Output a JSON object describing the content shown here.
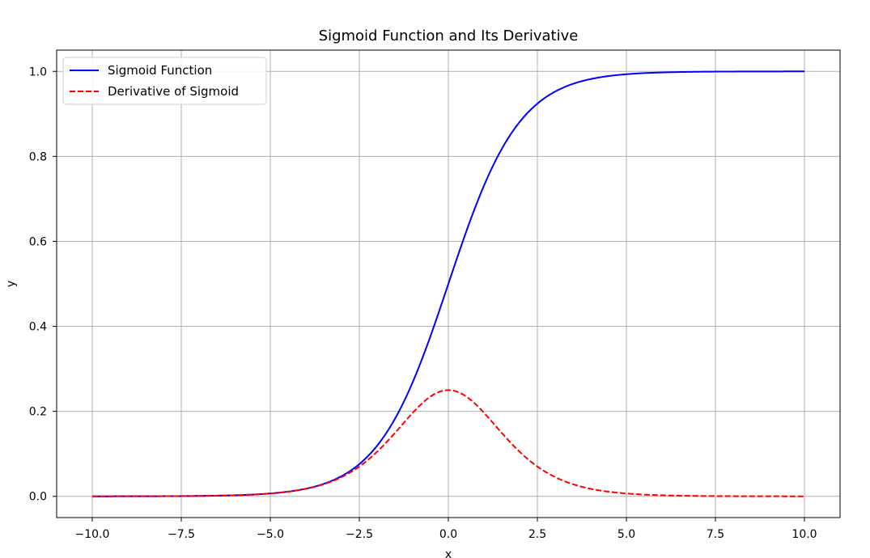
{
  "chart_data": {
    "type": "line",
    "title": "Sigmoid Function and Its Derivative",
    "xlabel": "x",
    "ylabel": "y",
    "xlim": [
      -11.0,
      11.0
    ],
    "ylim": [
      -0.05,
      1.05
    ],
    "x_ticks": [
      -10.0,
      -7.5,
      -5.0,
      -2.5,
      0.0,
      2.5,
      5.0,
      7.5,
      10.0
    ],
    "x_tick_labels": [
      "−10.0",
      "−7.5",
      "−5.0",
      "−2.5",
      "0.0",
      "2.5",
      "5.0",
      "7.5",
      "10.0"
    ],
    "y_ticks": [
      0.0,
      0.2,
      0.4,
      0.6,
      0.8,
      1.0
    ],
    "y_tick_labels": [
      "0.0",
      "0.2",
      "0.4",
      "0.6",
      "0.8",
      "1.0"
    ],
    "grid": true,
    "legend_position": "top-left",
    "x": [
      -10,
      -9,
      -8,
      -7,
      -6,
      -5,
      -4,
      -3.5,
      -3,
      -2.5,
      -2,
      -1.5,
      -1,
      -0.5,
      0,
      0.5,
      1,
      1.5,
      2,
      2.5,
      3,
      3.5,
      4,
      5,
      6,
      7,
      8,
      9,
      10
    ],
    "series": [
      {
        "name": "Sigmoid Function",
        "color": "#0000ff",
        "style": "solid",
        "values": [
          5e-05,
          0.00012,
          0.00034,
          0.00091,
          0.00247,
          0.00669,
          0.01799,
          0.02931,
          0.04743,
          0.07586,
          0.1192,
          0.18243,
          0.26894,
          0.37754,
          0.5,
          0.62246,
          0.73106,
          0.81757,
          0.8808,
          0.92414,
          0.95257,
          0.97069,
          0.98201,
          0.99331,
          0.99753,
          0.99909,
          0.99966,
          0.99988,
          0.99995
        ]
      },
      {
        "name": "Derivative of Sigmoid",
        "color": "#ff0000",
        "style": "dashed",
        "values": [
          5e-05,
          0.00012,
          0.00034,
          0.00091,
          0.00247,
          0.00665,
          0.01766,
          0.02845,
          0.04518,
          0.0701,
          0.10499,
          0.14915,
          0.19661,
          0.235,
          0.25,
          0.235,
          0.19661,
          0.14915,
          0.10499,
          0.0701,
          0.04518,
          0.02845,
          0.01766,
          0.00665,
          0.00247,
          0.00091,
          0.00034,
          0.00012,
          5e-05
        ]
      }
    ]
  }
}
